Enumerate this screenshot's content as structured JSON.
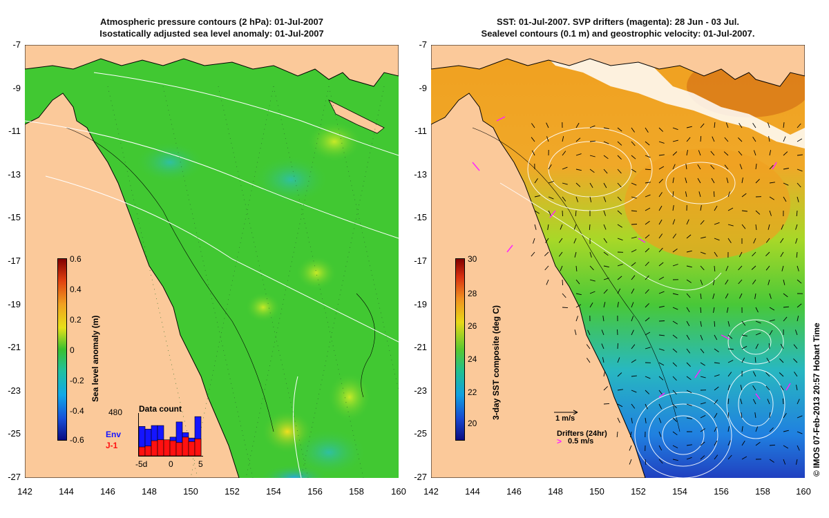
{
  "left_panel": {
    "title_line1": "Atmospheric pressure contours (2 hPa): 01-Jul-2007",
    "title_line2": "Isostatically adjusted sea level anomaly: 01-Jul-2007",
    "colorbar": {
      "label": "Sea level anomaly (m)",
      "ticks": [
        "0.6",
        "0.4",
        "0.2",
        "0",
        "-0.2",
        "-0.4",
        "-0.6"
      ]
    },
    "data_count": {
      "title": "Data count",
      "max_label": "480",
      "env_label": "Env",
      "j1_label": "J-1",
      "x_ticks": [
        "-5d",
        "0",
        "5"
      ],
      "env_counts": [
        330,
        300,
        340,
        340,
        110,
        210,
        380,
        260,
        200,
        440
      ],
      "j1_counts": [
        100,
        110,
        170,
        180,
        180,
        170,
        150,
        210,
        160,
        190
      ]
    },
    "colors": {
      "env": "#1515ff",
      "j1": "#ff1010"
    }
  },
  "right_panel": {
    "title_line1": "SST: 01-Jul-2007. SVP drifters (magenta): 28 Jun - 03 Jul.",
    "title_line2": "Sealevel contours (0.1 m) and geostrophic velocity: 01-Jul-2007.",
    "colorbar": {
      "label": "3-day SST composite (deg C)",
      "ticks": [
        "30",
        "28",
        "26",
        "24",
        "22",
        "20"
      ]
    },
    "velocity_scale_label": "1 m/s",
    "drifters_label": "Drifters (24hr)",
    "drifter_speed_label": "0.5 m/s",
    "drifter_color": "#ff22ff"
  },
  "axes": {
    "y_ticks": [
      "-7",
      "-9",
      "-11",
      "-13",
      "-15",
      "-17",
      "-19",
      "-21",
      "-23",
      "-25",
      "-27"
    ],
    "x_ticks": [
      "142",
      "144",
      "146",
      "148",
      "150",
      "152",
      "154",
      "156",
      "158",
      "160"
    ]
  },
  "credit": "© IMOS 07-Feb-2013 20:57 Hobart Time",
  "colors": {
    "land": "#fbc99a",
    "ocean_sla": "#41c832",
    "coast": "#000000"
  }
}
